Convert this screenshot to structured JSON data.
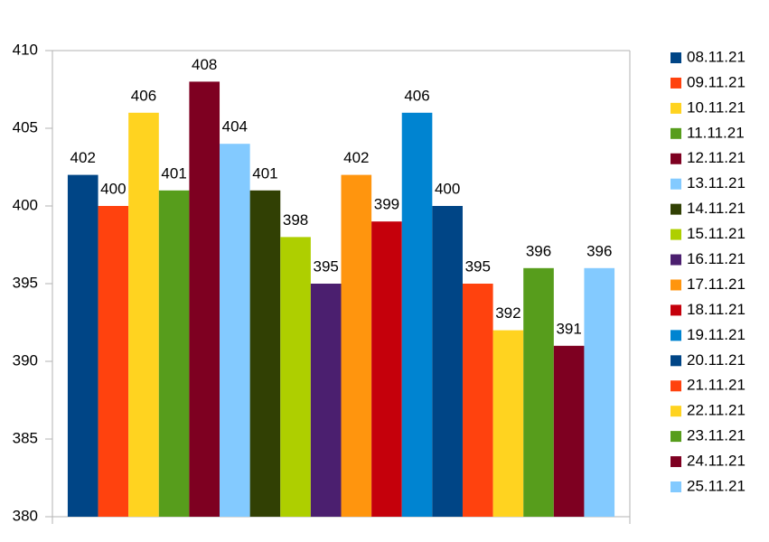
{
  "chart_data": {
    "type": "bar",
    "categories": [
      null
    ],
    "series": [
      {
        "name": "08.11.21",
        "color": "#004586",
        "values": [
          402
        ]
      },
      {
        "name": "09.11.21",
        "color": "#ff420e",
        "values": [
          400
        ]
      },
      {
        "name": "10.11.21",
        "color": "#ffd320",
        "values": [
          406
        ]
      },
      {
        "name": "11.11.21",
        "color": "#579d1c",
        "values": [
          401
        ]
      },
      {
        "name": "12.11.21",
        "color": "#7e0021",
        "values": [
          408
        ]
      },
      {
        "name": "13.11.21",
        "color": "#83caff",
        "values": [
          404
        ]
      },
      {
        "name": "14.11.21",
        "color": "#314004",
        "values": [
          401
        ]
      },
      {
        "name": "15.11.21",
        "color": "#aecf00",
        "values": [
          398
        ]
      },
      {
        "name": "16.11.21",
        "color": "#4b1f6f",
        "values": [
          395
        ]
      },
      {
        "name": "17.11.21",
        "color": "#ff950e",
        "values": [
          402
        ]
      },
      {
        "name": "18.11.21",
        "color": "#c5000b",
        "values": [
          399
        ]
      },
      {
        "name": "19.11.21",
        "color": "#0084d1",
        "values": [
          406
        ]
      },
      {
        "name": "20.11.21",
        "color": "#004586",
        "values": [
          400
        ]
      },
      {
        "name": "21.11.21",
        "color": "#ff420e",
        "values": [
          395
        ]
      },
      {
        "name": "22.11.21",
        "color": "#ffd320",
        "values": [
          392
        ]
      },
      {
        "name": "23.11.21",
        "color": "#579d1c",
        "values": [
          396
        ]
      },
      {
        "name": "24.11.21",
        "color": "#7e0021",
        "values": [
          391
        ]
      },
      {
        "name": "25.11.21",
        "color": "#83caff",
        "values": [
          396
        ]
      }
    ],
    "ylim": [
      380,
      410
    ],
    "yticks": [
      380,
      385,
      390,
      395,
      400,
      405,
      410
    ],
    "grid": false,
    "legend": "right",
    "data_labels": true
  }
}
